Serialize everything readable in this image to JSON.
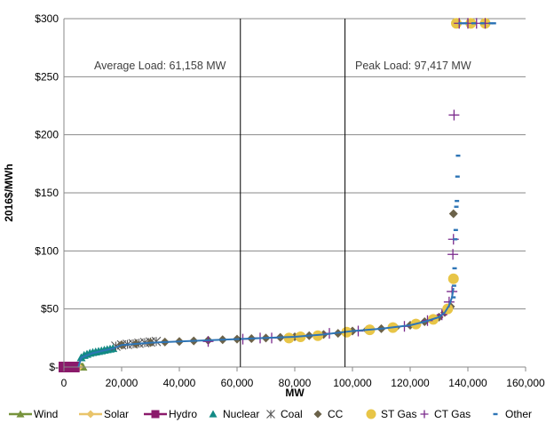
{
  "chart_data": {
    "type": "scatter",
    "title": "",
    "xlabel": "MW",
    "ylabel": "2016$/MWh",
    "xlim": [
      0,
      160000
    ],
    "ylim": [
      0,
      300
    ],
    "x_ticks": [
      0,
      20000,
      40000,
      60000,
      80000,
      100000,
      120000,
      140000,
      160000
    ],
    "x_tick_labels": [
      "0",
      "20,000",
      "40,000",
      "60,000",
      "80,000",
      "100,000",
      "120,000",
      "140,000",
      "160,000"
    ],
    "y_ticks": [
      0,
      50,
      100,
      150,
      200,
      250,
      300
    ],
    "y_tick_labels": [
      "$-",
      "$50",
      "$100",
      "$150",
      "$200",
      "$250",
      "$300"
    ],
    "grid": "horizontal",
    "legend_position": "bottom",
    "annotations": [
      {
        "text": "Average Load: 61,158  MW",
        "x": 61158
      },
      {
        "text": "Peak Load: 97,417  MW",
        "x": 97417
      }
    ],
    "series": [
      {
        "name": "Wind",
        "marker": "triangle",
        "color": "#77933C",
        "points": [
          [
            6000,
            0
          ],
          [
            6300,
            0
          ],
          [
            6600,
            0
          ]
        ]
      },
      {
        "name": "Solar",
        "marker": "diamond",
        "color": "#E9C46A",
        "points": [
          [
            0,
            0
          ],
          [
            2000,
            0
          ],
          [
            4000,
            0
          ],
          [
            5200,
            0
          ]
        ]
      },
      {
        "name": "Hydro",
        "marker": "square",
        "color": "#8B1A6B",
        "points": [
          [
            0,
            0
          ],
          [
            1200,
            0
          ],
          [
            2400,
            0
          ],
          [
            3600,
            0
          ]
        ]
      },
      {
        "name": "Nuclear",
        "marker": "triangle",
        "color": "#138A85",
        "points": [
          [
            6000,
            8
          ],
          [
            7000,
            10
          ],
          [
            8000,
            11
          ],
          [
            9000,
            12
          ],
          [
            10000,
            12.5
          ],
          [
            11000,
            13
          ],
          [
            12000,
            13.5
          ],
          [
            13000,
            14
          ],
          [
            14000,
            14.5
          ],
          [
            15000,
            15
          ],
          [
            16000,
            15.5
          ],
          [
            17000,
            16
          ]
        ]
      },
      {
        "name": "Coal",
        "marker": "asterisk",
        "color": "#555555",
        "points": [
          [
            18000,
            18
          ],
          [
            20000,
            19
          ],
          [
            22000,
            19.5
          ],
          [
            24000,
            20
          ],
          [
            26000,
            20.5
          ],
          [
            28000,
            21
          ],
          [
            30000,
            21.5
          ],
          [
            32000,
            22
          ]
        ]
      },
      {
        "name": "CC",
        "marker": "diamond",
        "color": "#6B6249",
        "points": [
          [
            20000,
            19
          ],
          [
            25000,
            20
          ],
          [
            30000,
            21
          ],
          [
            35000,
            21.5
          ],
          [
            40000,
            22
          ],
          [
            45000,
            22.5
          ],
          [
            50000,
            23
          ],
          [
            55000,
            23.5
          ],
          [
            60000,
            24
          ],
          [
            65000,
            24.5
          ],
          [
            70000,
            25
          ],
          [
            75000,
            25.5
          ],
          [
            80000,
            26
          ],
          [
            85000,
            27
          ],
          [
            90000,
            28
          ],
          [
            95000,
            29
          ],
          [
            100000,
            31
          ],
          [
            105000,
            32
          ],
          [
            110000,
            33
          ],
          [
            115000,
            34
          ],
          [
            120000,
            36
          ],
          [
            125000,
            39
          ],
          [
            130000,
            43
          ],
          [
            132000,
            47
          ],
          [
            134000,
            52
          ],
          [
            135000,
            132
          ]
        ]
      },
      {
        "name": "ST Gas",
        "marker": "circle",
        "color": "#E8C547",
        "points": [
          [
            78000,
            25
          ],
          [
            82000,
            26
          ],
          [
            88000,
            27
          ],
          [
            98000,
            30
          ],
          [
            106000,
            32
          ],
          [
            114000,
            34
          ],
          [
            122000,
            37
          ],
          [
            128000,
            41
          ],
          [
            133000,
            50
          ],
          [
            135000,
            76
          ],
          [
            136000,
            296
          ],
          [
            141000,
            296
          ],
          [
            146000,
            296
          ]
        ]
      },
      {
        "name": "CT Gas",
        "marker": "plus",
        "color": "#7B2A8C",
        "points": [
          [
            50000,
            22
          ],
          [
            62000,
            24
          ],
          [
            68000,
            25
          ],
          [
            72000,
            25
          ],
          [
            92000,
            29
          ],
          [
            102000,
            31
          ],
          [
            118000,
            35
          ],
          [
            126000,
            40
          ],
          [
            131000,
            45
          ],
          [
            133500,
            56
          ],
          [
            134500,
            65
          ],
          [
            134800,
            97
          ],
          [
            135000,
            110
          ],
          [
            135200,
            217
          ],
          [
            137000,
            296
          ],
          [
            140000,
            296
          ],
          [
            143000,
            296
          ],
          [
            146000,
            296
          ]
        ]
      },
      {
        "name": "Other",
        "marker": "dash",
        "color": "#2E75B6",
        "points": [
          [
            135000,
            60
          ],
          [
            135200,
            70
          ],
          [
            135400,
            85
          ],
          [
            135600,
            110
          ],
          [
            135800,
            118
          ],
          [
            136000,
            138
          ],
          [
            136200,
            143
          ],
          [
            136400,
            164
          ],
          [
            136600,
            182
          ],
          [
            137500,
            296
          ],
          [
            139000,
            296
          ],
          [
            142000,
            296
          ],
          [
            145000,
            296
          ],
          [
            148000,
            296
          ],
          [
            149000,
            296
          ]
        ]
      }
    ],
    "curve": {
      "color": "#2E75B6",
      "points": [
        [
          5000,
          0
        ],
        [
          6000,
          8
        ],
        [
          10000,
          12
        ],
        [
          17000,
          16
        ],
        [
          20000,
          19
        ],
        [
          30000,
          21
        ],
        [
          40000,
          22
        ],
        [
          50000,
          23
        ],
        [
          60000,
          24
        ],
        [
          70000,
          25
        ],
        [
          80000,
          26
        ],
        [
          90000,
          28
        ],
        [
          100000,
          31
        ],
        [
          110000,
          33
        ],
        [
          120000,
          36
        ],
        [
          125000,
          39
        ],
        [
          130000,
          43
        ],
        [
          132000,
          47
        ],
        [
          133500,
          53
        ],
        [
          134500,
          60
        ],
        [
          135000,
          68
        ]
      ]
    }
  }
}
